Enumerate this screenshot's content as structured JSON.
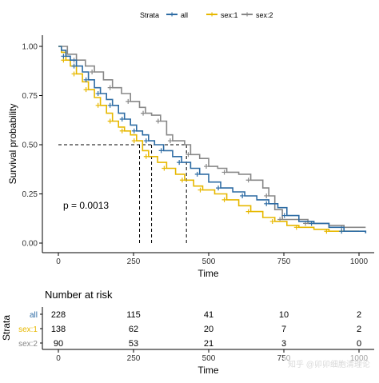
{
  "chart_data": {
    "type": "survival",
    "legend": {
      "title": "Strata",
      "position": "top",
      "entries": [
        "all",
        "sex:1",
        "sex:2"
      ]
    },
    "colors": {
      "all": "#2E6CA4",
      "sex:1": "#E7B800",
      "sex:2": "#888888"
    },
    "xlabel": "Time",
    "ylabel": "Survival probability",
    "xlim": [
      0,
      1022
    ],
    "ylim": [
      0,
      1
    ],
    "xticks": [
      0,
      250,
      500,
      750,
      1000
    ],
    "yticks": [
      "0.00",
      "0.25",
      "0.50",
      "0.75",
      "1.00"
    ],
    "pvalue": "p = 0.0013",
    "median_line_y": 0.5,
    "medians": [
      270,
      310,
      426
    ],
    "series": [
      {
        "name": "all",
        "points": [
          [
            0,
            1
          ],
          [
            10,
            0.98
          ],
          [
            25,
            0.95
          ],
          [
            40,
            0.93
          ],
          [
            60,
            0.9
          ],
          [
            80,
            0.87
          ],
          [
            100,
            0.83
          ],
          [
            120,
            0.79
          ],
          [
            140,
            0.76
          ],
          [
            160,
            0.73
          ],
          [
            180,
            0.7
          ],
          [
            200,
            0.66
          ],
          [
            220,
            0.63
          ],
          [
            240,
            0.6
          ],
          [
            260,
            0.57
          ],
          [
            280,
            0.55
          ],
          [
            300,
            0.52
          ],
          [
            320,
            0.5
          ],
          [
            350,
            0.47
          ],
          [
            380,
            0.44
          ],
          [
            410,
            0.41
          ],
          [
            440,
            0.38
          ],
          [
            470,
            0.35
          ],
          [
            500,
            0.31
          ],
          [
            540,
            0.28
          ],
          [
            580,
            0.26
          ],
          [
            620,
            0.24
          ],
          [
            660,
            0.22
          ],
          [
            700,
            0.2
          ],
          [
            730,
            0.18
          ],
          [
            760,
            0.14
          ],
          [
            800,
            0.11
          ],
          [
            850,
            0.1
          ],
          [
            900,
            0.08
          ],
          [
            950,
            0.06
          ],
          [
            1022,
            0.05
          ]
        ]
      },
      {
        "name": "sex:1",
        "points": [
          [
            0,
            1
          ],
          [
            10,
            0.97
          ],
          [
            25,
            0.93
          ],
          [
            40,
            0.9
          ],
          [
            60,
            0.86
          ],
          [
            80,
            0.82
          ],
          [
            100,
            0.78
          ],
          [
            120,
            0.74
          ],
          [
            140,
            0.7
          ],
          [
            160,
            0.66
          ],
          [
            180,
            0.62
          ],
          [
            200,
            0.59
          ],
          [
            220,
            0.57
          ],
          [
            240,
            0.55
          ],
          [
            260,
            0.52
          ],
          [
            280,
            0.47
          ],
          [
            300,
            0.44
          ],
          [
            330,
            0.41
          ],
          [
            360,
            0.38
          ],
          [
            390,
            0.35
          ],
          [
            420,
            0.32
          ],
          [
            450,
            0.29
          ],
          [
            480,
            0.27
          ],
          [
            520,
            0.25
          ],
          [
            560,
            0.22
          ],
          [
            600,
            0.19
          ],
          [
            640,
            0.16
          ],
          [
            680,
            0.13
          ],
          [
            720,
            0.11
          ],
          [
            760,
            0.09
          ],
          [
            800,
            0.08
          ],
          [
            850,
            0.07
          ],
          [
            900,
            0.06
          ],
          [
            1000,
            0.06
          ]
        ]
      },
      {
        "name": "sex:2",
        "points": [
          [
            0,
            1
          ],
          [
            30,
            0.96
          ],
          [
            60,
            0.93
          ],
          [
            90,
            0.9
          ],
          [
            120,
            0.87
          ],
          [
            150,
            0.83
          ],
          [
            180,
            0.79
          ],
          [
            210,
            0.76
          ],
          [
            240,
            0.72
          ],
          [
            270,
            0.69
          ],
          [
            290,
            0.66
          ],
          [
            310,
            0.65
          ],
          [
            340,
            0.62
          ],
          [
            360,
            0.55
          ],
          [
            380,
            0.52
          ],
          [
            420,
            0.5
          ],
          [
            440,
            0.45
          ],
          [
            470,
            0.43
          ],
          [
            500,
            0.39
          ],
          [
            530,
            0.38
          ],
          [
            560,
            0.36
          ],
          [
            600,
            0.35
          ],
          [
            640,
            0.32
          ],
          [
            680,
            0.28
          ],
          [
            700,
            0.24
          ],
          [
            720,
            0.17
          ],
          [
            745,
            0.12
          ],
          [
            770,
            0.12
          ],
          [
            830,
            0.1
          ],
          [
            900,
            0.09
          ],
          [
            950,
            0.08
          ],
          [
            1022,
            0.08
          ]
        ]
      }
    ],
    "risk_table": {
      "title": "Number at risk",
      "ylabel": "Strata",
      "xlabel": "Time",
      "times": [
        0,
        250,
        500,
        750,
        1000
      ],
      "rows": [
        {
          "name": "all",
          "values": [
            228,
            115,
            41,
            10,
            2
          ]
        },
        {
          "name": "sex:1",
          "values": [
            138,
            62,
            20,
            7,
            2
          ]
        },
        {
          "name": "sex:2",
          "values": [
            90,
            53,
            21,
            3,
            0
          ]
        }
      ]
    }
  },
  "watermark": "知乎 @卯卯细胞清理论"
}
